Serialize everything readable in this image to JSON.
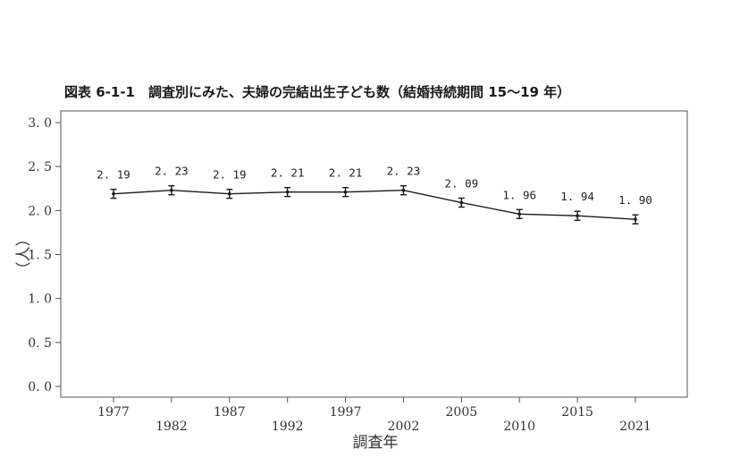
{
  "chart_data": {
    "type": "line",
    "title": "図表 6-1-1　調査別にみた、夫婦の完結出生子ども数（結婚持続期間 15～19 年）",
    "xlabel": "調査年",
    "ylabel": "（人）",
    "categories": [
      "1977",
      "1982",
      "1987",
      "1992",
      "1997",
      "2002",
      "2005",
      "2010",
      "2015",
      "2021"
    ],
    "values": [
      2.19,
      2.23,
      2.19,
      2.21,
      2.21,
      2.23,
      2.09,
      1.96,
      1.94,
      1.9
    ],
    "value_labels": [
      "2. 19",
      "2. 23",
      "2. 19",
      "2. 21",
      "2. 21",
      "2. 23",
      "2. 09",
      "1. 96",
      "1. 94",
      "1. 90"
    ],
    "ylim": [
      0.0,
      3.0
    ],
    "yticks": [
      "0. 0",
      "0. 5",
      "1. 0",
      "1. 5",
      "2. 0",
      "2. 5",
      "3. 0"
    ],
    "error_bars": true,
    "grid": false,
    "line_color": "#1a1a1a"
  }
}
